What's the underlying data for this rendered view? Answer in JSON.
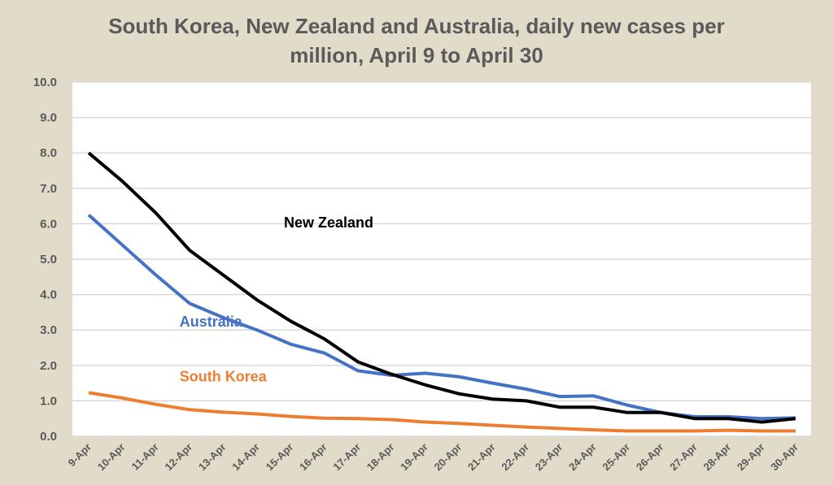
{
  "chart_data": {
    "type": "line",
    "title_line1": "South Korea, New Zealand and Australia, daily new cases per",
    "title_line2": "million, April 9 to April 30",
    "xlabel": "",
    "ylabel": "",
    "ylim": [
      0,
      10
    ],
    "yticks": [
      "0.0",
      "1.0",
      "2.0",
      "3.0",
      "4.0",
      "5.0",
      "6.0",
      "7.0",
      "8.0",
      "9.0",
      "10.0"
    ],
    "grid": true,
    "categories": [
      "9-Apr",
      "10-Apr",
      "11-Apr",
      "12-Apr",
      "13-Apr",
      "14-Apr",
      "15-Apr",
      "16-Apr",
      "17-Apr",
      "18-Apr",
      "19-Apr",
      "20-Apr",
      "21-Apr",
      "22-Apr",
      "23-Apr",
      "24-Apr",
      "25-Apr",
      "26-Apr",
      "27-Apr",
      "28-Apr",
      "29-Apr",
      "30-Apr"
    ],
    "series": [
      {
        "name": "New Zealand",
        "color": "#000000",
        "label_at": [
          5.8,
          5.9
        ],
        "values": [
          8.0,
          7.2,
          6.3,
          5.25,
          4.55,
          3.85,
          3.25,
          2.75,
          2.1,
          1.75,
          1.45,
          1.2,
          1.05,
          1.0,
          0.82,
          0.82,
          0.67,
          0.67,
          0.5,
          0.5,
          0.4,
          0.5
        ]
      },
      {
        "name": "Australia",
        "color": "#4472c4",
        "label_at": [
          2.7,
          3.1
        ],
        "values": [
          6.25,
          5.4,
          4.55,
          3.75,
          3.35,
          3.0,
          2.6,
          2.35,
          1.85,
          1.72,
          1.78,
          1.68,
          1.5,
          1.33,
          1.12,
          1.14,
          0.88,
          0.67,
          0.55,
          0.55,
          0.5,
          0.52
        ]
      },
      {
        "name": "South Korea",
        "color": "#ed7d31",
        "label_at": [
          2.7,
          1.55
        ],
        "values": [
          1.23,
          1.08,
          0.9,
          0.75,
          0.68,
          0.63,
          0.56,
          0.51,
          0.5,
          0.47,
          0.4,
          0.36,
          0.31,
          0.26,
          0.22,
          0.18,
          0.15,
          0.15,
          0.15,
          0.17,
          0.15,
          0.15
        ]
      }
    ]
  }
}
